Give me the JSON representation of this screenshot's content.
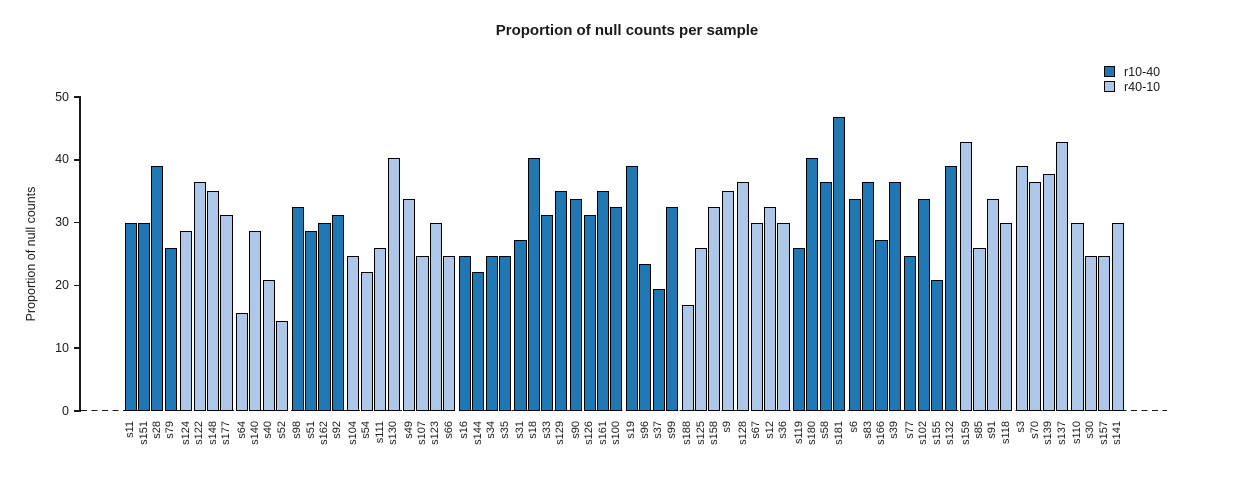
{
  "chart_data": {
    "type": "bar",
    "title": "Proportion of null counts per sample",
    "xlabel": "",
    "ylabel": "Proportion of null counts",
    "ylim": [
      0,
      50
    ],
    "yticks": [
      0,
      10,
      20,
      30,
      40,
      50
    ],
    "grid": false,
    "legend_position": "top-right",
    "baseline_style": "dashed-zero-line",
    "group_size": 4,
    "series": [
      {
        "name": "r10-40",
        "color": "#1F77B4"
      },
      {
        "name": "r40-10",
        "color": "#AEC7E8"
      }
    ],
    "samples": [
      {
        "label": "s11",
        "value": 29.9,
        "series": "r10-40"
      },
      {
        "label": "s151",
        "value": 29.9,
        "series": "r10-40"
      },
      {
        "label": "s28",
        "value": 39.0,
        "series": "r10-40"
      },
      {
        "label": "s79",
        "value": 26.0,
        "series": "r10-40"
      },
      {
        "label": "s124",
        "value": 28.6,
        "series": "r40-10"
      },
      {
        "label": "s122",
        "value": 36.4,
        "series": "r40-10"
      },
      {
        "label": "s148",
        "value": 35.1,
        "series": "r40-10"
      },
      {
        "label": "s177",
        "value": 31.2,
        "series": "r40-10"
      },
      {
        "label": "s64",
        "value": 15.6,
        "series": "r40-10"
      },
      {
        "label": "s140",
        "value": 28.6,
        "series": "r40-10"
      },
      {
        "label": "s40",
        "value": 20.8,
        "series": "r40-10"
      },
      {
        "label": "s52",
        "value": 14.3,
        "series": "r40-10"
      },
      {
        "label": "s98",
        "value": 32.5,
        "series": "r10-40"
      },
      {
        "label": "s51",
        "value": 28.6,
        "series": "r10-40"
      },
      {
        "label": "s162",
        "value": 29.9,
        "series": "r10-40"
      },
      {
        "label": "s92",
        "value": 31.2,
        "series": "r10-40"
      },
      {
        "label": "s104",
        "value": 24.7,
        "series": "r40-10"
      },
      {
        "label": "s54",
        "value": 22.1,
        "series": "r40-10"
      },
      {
        "label": "s111",
        "value": 26.0,
        "series": "r40-10"
      },
      {
        "label": "s130",
        "value": 40.3,
        "series": "r40-10"
      },
      {
        "label": "s49",
        "value": 33.8,
        "series": "r40-10"
      },
      {
        "label": "s107",
        "value": 24.7,
        "series": "r40-10"
      },
      {
        "label": "s123",
        "value": 29.9,
        "series": "r40-10"
      },
      {
        "label": "s66",
        "value": 24.7,
        "series": "r40-10"
      },
      {
        "label": "s16",
        "value": 24.7,
        "series": "r10-40"
      },
      {
        "label": "s144",
        "value": 22.1,
        "series": "r10-40"
      },
      {
        "label": "s34",
        "value": 24.7,
        "series": "r10-40"
      },
      {
        "label": "s35",
        "value": 24.7,
        "series": "r10-40"
      },
      {
        "label": "s31",
        "value": 27.3,
        "series": "r10-40"
      },
      {
        "label": "s18",
        "value": 40.3,
        "series": "r10-40"
      },
      {
        "label": "s33",
        "value": 31.2,
        "series": "r10-40"
      },
      {
        "label": "s129",
        "value": 35.1,
        "series": "r10-40"
      },
      {
        "label": "s90",
        "value": 33.8,
        "series": "r10-40"
      },
      {
        "label": "s126",
        "value": 31.2,
        "series": "r10-40"
      },
      {
        "label": "s161",
        "value": 35.1,
        "series": "r10-40"
      },
      {
        "label": "s100",
        "value": 32.5,
        "series": "r10-40"
      },
      {
        "label": "s19",
        "value": 39.0,
        "series": "r10-40"
      },
      {
        "label": "s96",
        "value": 23.4,
        "series": "r10-40"
      },
      {
        "label": "s37",
        "value": 19.5,
        "series": "r10-40"
      },
      {
        "label": "s99",
        "value": 32.5,
        "series": "r10-40"
      },
      {
        "label": "s188",
        "value": 16.9,
        "series": "r40-10"
      },
      {
        "label": "s125",
        "value": 26.0,
        "series": "r40-10"
      },
      {
        "label": "s158",
        "value": 32.5,
        "series": "r40-10"
      },
      {
        "label": "s9",
        "value": 35.1,
        "series": "r40-10"
      },
      {
        "label": "s128",
        "value": 36.4,
        "series": "r40-10"
      },
      {
        "label": "s67",
        "value": 29.9,
        "series": "r40-10"
      },
      {
        "label": "s12",
        "value": 32.5,
        "series": "r40-10"
      },
      {
        "label": "s36",
        "value": 29.9,
        "series": "r40-10"
      },
      {
        "label": "s119",
        "value": 26.0,
        "series": "r10-40"
      },
      {
        "label": "s180",
        "value": 40.3,
        "series": "r10-40"
      },
      {
        "label": "s58",
        "value": 36.4,
        "series": "r10-40"
      },
      {
        "label": "s181",
        "value": 46.8,
        "series": "r10-40"
      },
      {
        "label": "s6",
        "value": 33.8,
        "series": "r10-40"
      },
      {
        "label": "s83",
        "value": 36.4,
        "series": "r10-40"
      },
      {
        "label": "s166",
        "value": 27.3,
        "series": "r10-40"
      },
      {
        "label": "s39",
        "value": 36.4,
        "series": "r10-40"
      },
      {
        "label": "s77",
        "value": 24.7,
        "series": "r10-40"
      },
      {
        "label": "s102",
        "value": 33.8,
        "series": "r10-40"
      },
      {
        "label": "s155",
        "value": 20.8,
        "series": "r10-40"
      },
      {
        "label": "s132",
        "value": 39.0,
        "series": "r10-40"
      },
      {
        "label": "s159",
        "value": 42.9,
        "series": "r40-10"
      },
      {
        "label": "s85",
        "value": 26.0,
        "series": "r40-10"
      },
      {
        "label": "s91",
        "value": 33.8,
        "series": "r40-10"
      },
      {
        "label": "s118",
        "value": 29.9,
        "series": "r40-10"
      },
      {
        "label": "s3",
        "value": 39.0,
        "series": "r40-10"
      },
      {
        "label": "s70",
        "value": 36.4,
        "series": "r40-10"
      },
      {
        "label": "s139",
        "value": 37.7,
        "series": "r40-10"
      },
      {
        "label": "s137",
        "value": 42.9,
        "series": "r40-10"
      },
      {
        "label": "s110",
        "value": 29.9,
        "series": "r40-10"
      },
      {
        "label": "s30",
        "value": 24.7,
        "series": "r40-10"
      },
      {
        "label": "s157",
        "value": 24.7,
        "series": "r40-10"
      },
      {
        "label": "s141",
        "value": 29.9,
        "series": "r40-10"
      }
    ]
  }
}
